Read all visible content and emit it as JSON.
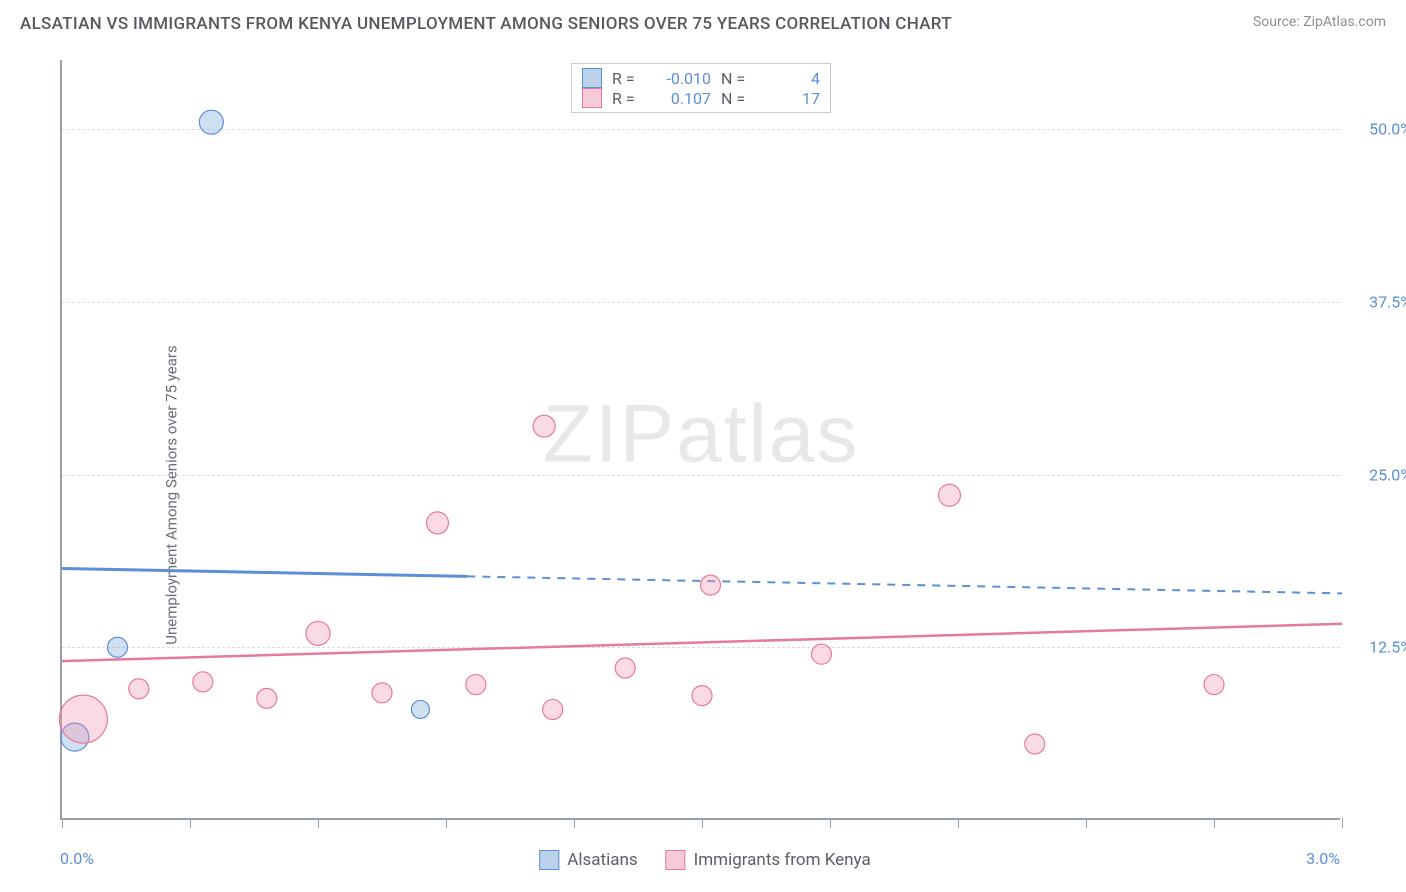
{
  "title": "ALSATIAN VS IMMIGRANTS FROM KENYA UNEMPLOYMENT AMONG SENIORS OVER 75 YEARS CORRELATION CHART",
  "source_prefix": "Source: ",
  "source_link": "ZipAtlas.com",
  "y_axis_label": "Unemployment Among Seniors over 75 years",
  "watermark_a": "ZIP",
  "watermark_b": "atlas",
  "chart": {
    "type": "scatter-correlation",
    "xlim": [
      0.0,
      3.0
    ],
    "ylim": [
      0.0,
      55.0
    ],
    "x_ticks": [
      0.0,
      0.3,
      0.6,
      0.9,
      1.2,
      1.5,
      1.8,
      2.1,
      2.4,
      2.7,
      3.0
    ],
    "x_tick_labels": {
      "0": "0.0%",
      "3": "3.0%"
    },
    "y_gridlines": [
      12.5,
      25.0,
      37.5,
      50.0
    ],
    "y_tick_labels": {
      "12.5": "12.5%",
      "25.0": "25.0%",
      "37.5": "37.5%",
      "50.0": "50.0%"
    },
    "background_color": "#ffffff",
    "grid_color": "#d8dce0",
    "axis_color": "#9aa0a8",
    "series": [
      {
        "name": "Alsatians",
        "color_fill": "rgba(120,165,220,0.35)",
        "color_stroke": "#5b8fd6",
        "R": "-0.010",
        "N": "4",
        "points": [
          {
            "x": 0.03,
            "y": 6.0,
            "r": 14
          },
          {
            "x": 0.13,
            "y": 12.5,
            "r": 10
          },
          {
            "x": 0.35,
            "y": 50.5,
            "r": 12
          },
          {
            "x": 0.84,
            "y": 8.0,
            "r": 9
          }
        ],
        "trend": {
          "x1": 0.0,
          "y1": 18.2,
          "x2": 3.0,
          "y2": 16.4,
          "solid_until_x": 0.95
        }
      },
      {
        "name": "Immigrants from Kenya",
        "color_fill": "rgba(240,150,175,0.35)",
        "color_stroke": "#e67a9b",
        "R": "0.107",
        "N": "17",
        "points": [
          {
            "x": 0.05,
            "y": 7.3,
            "r": 24
          },
          {
            "x": 0.18,
            "y": 9.5,
            "r": 10
          },
          {
            "x": 0.33,
            "y": 10.0,
            "r": 10
          },
          {
            "x": 0.48,
            "y": 8.8,
            "r": 10
          },
          {
            "x": 0.6,
            "y": 13.5,
            "r": 12
          },
          {
            "x": 0.75,
            "y": 9.2,
            "r": 10
          },
          {
            "x": 0.88,
            "y": 21.5,
            "r": 11
          },
          {
            "x": 0.97,
            "y": 9.8,
            "r": 10
          },
          {
            "x": 1.13,
            "y": 28.5,
            "r": 11
          },
          {
            "x": 1.15,
            "y": 8.0,
            "r": 10
          },
          {
            "x": 1.32,
            "y": 11.0,
            "r": 10
          },
          {
            "x": 1.5,
            "y": 9.0,
            "r": 10
          },
          {
            "x": 1.52,
            "y": 17.0,
            "r": 10
          },
          {
            "x": 1.78,
            "y": 12.0,
            "r": 10
          },
          {
            "x": 2.08,
            "y": 23.5,
            "r": 11
          },
          {
            "x": 2.28,
            "y": 5.5,
            "r": 10
          },
          {
            "x": 2.7,
            "y": 9.8,
            "r": 10
          }
        ],
        "trend": {
          "x1": 0.0,
          "y1": 11.5,
          "x2": 3.0,
          "y2": 14.2,
          "solid_until_x": 3.0
        }
      }
    ]
  },
  "legend_bottom": [
    {
      "label": "Alsatians",
      "swatch": "blue"
    },
    {
      "label": "Immigrants from Kenya",
      "swatch": "pink"
    }
  ]
}
